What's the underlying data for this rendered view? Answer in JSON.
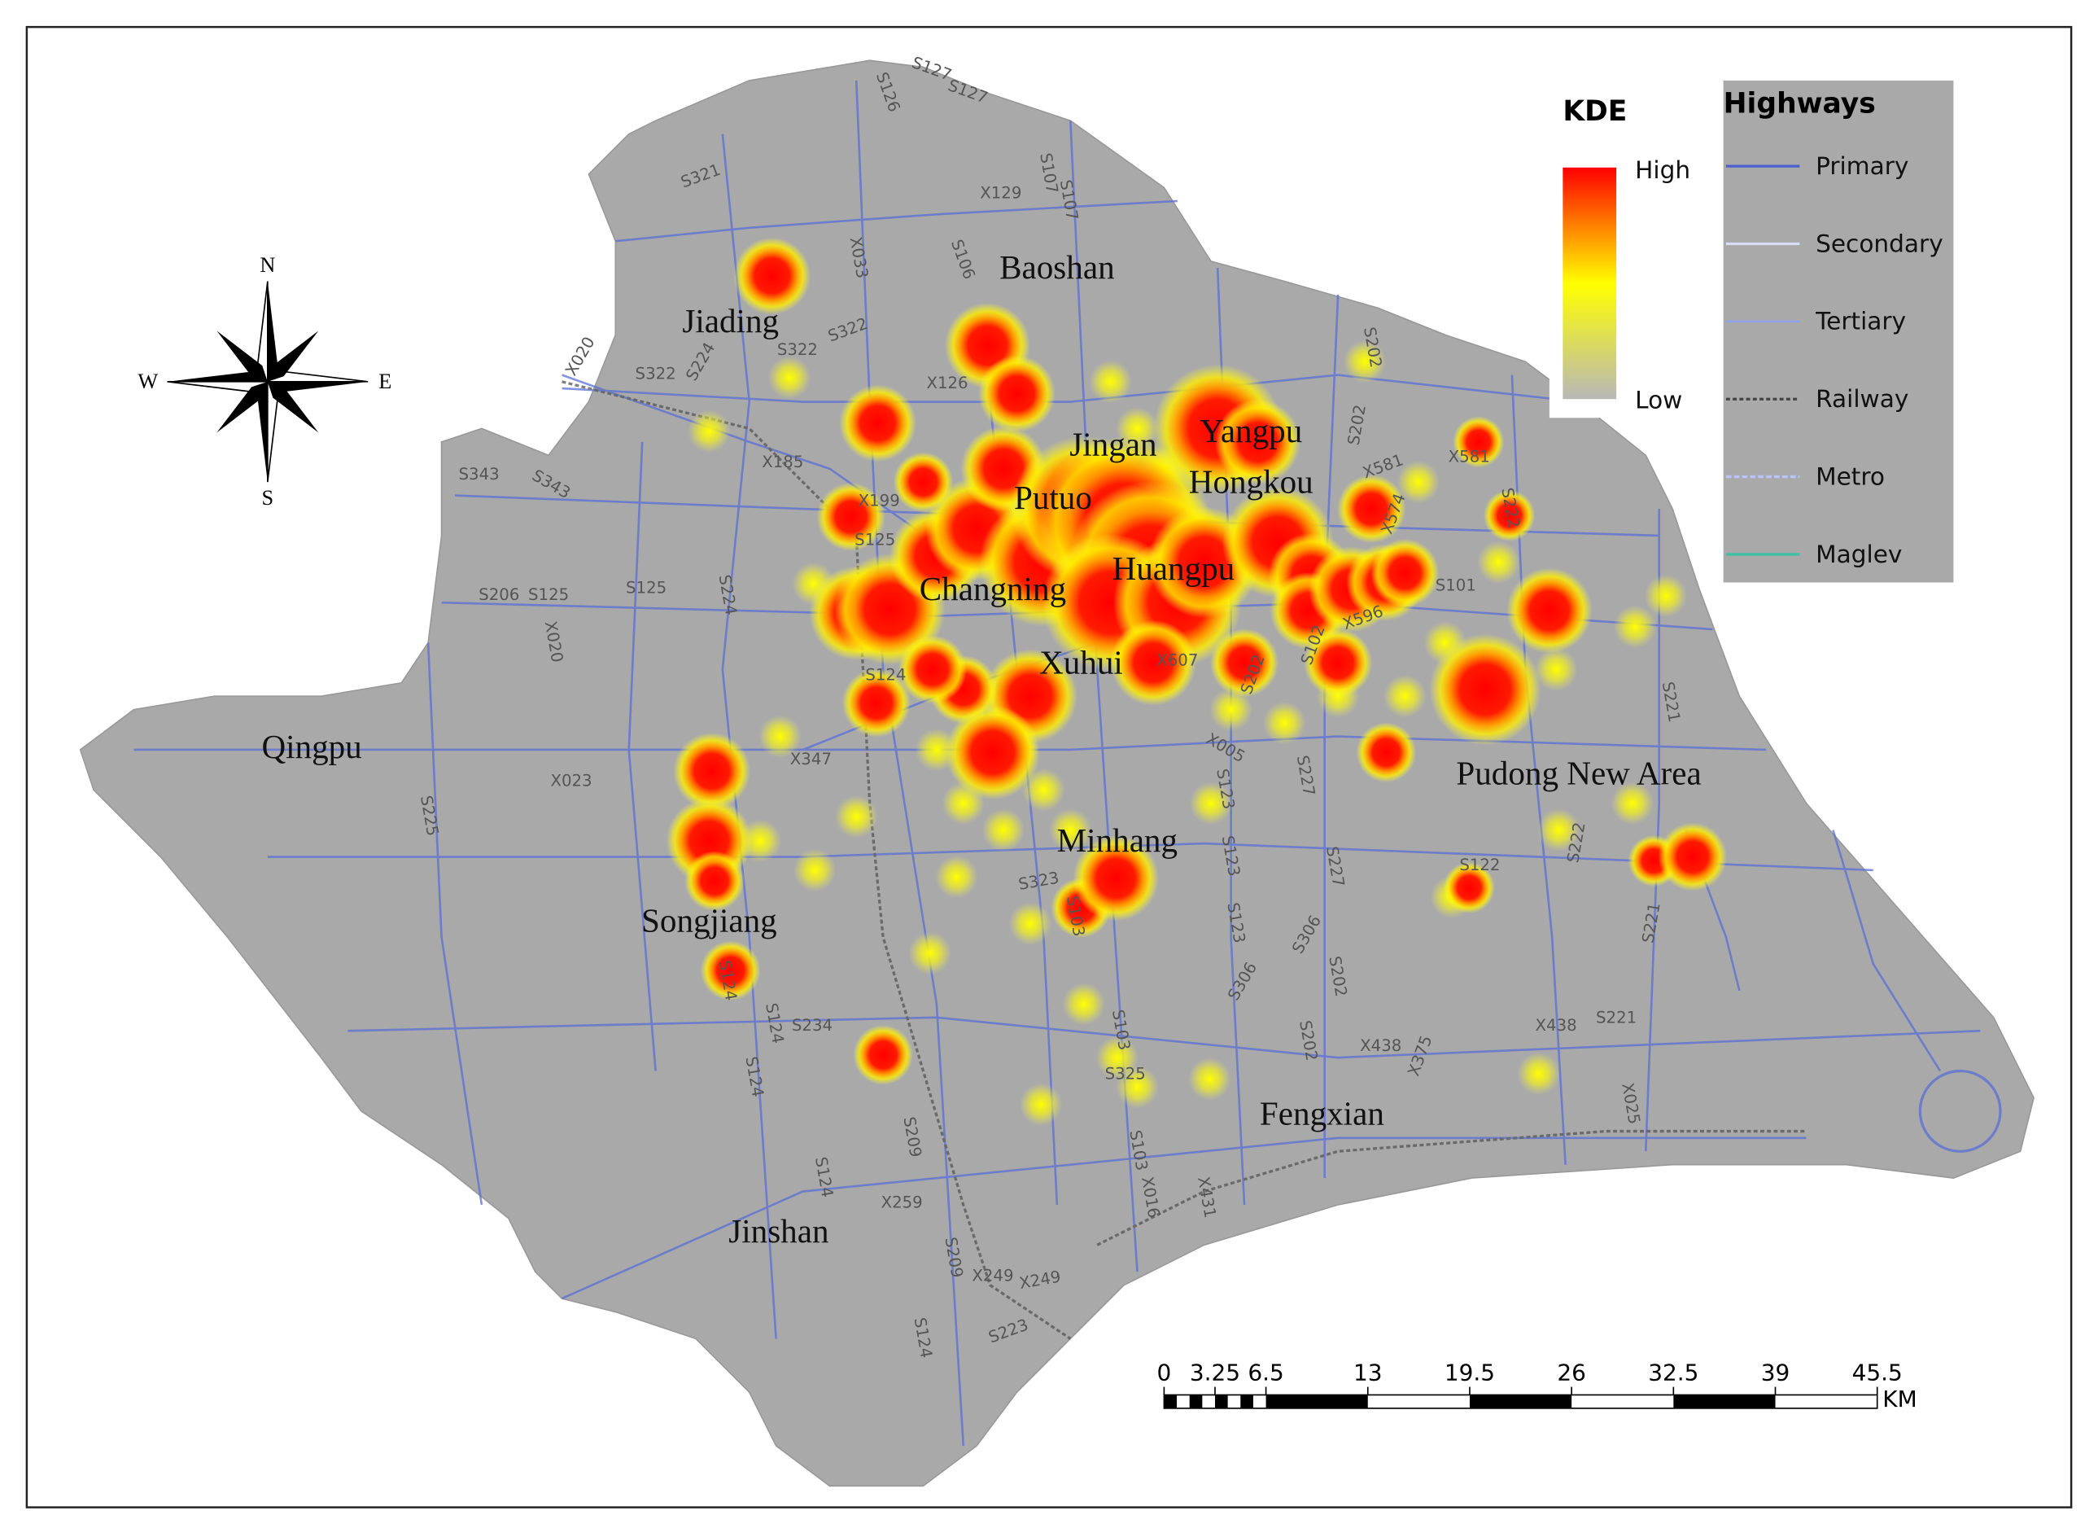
{
  "map": {
    "districts": [
      "Baoshan",
      "Jiading",
      "Jingan",
      "Yangpu",
      "Putuo",
      "Hongkou",
      "Changning",
      "Huangpu",
      "Xuhui",
      "Qingpu",
      "Pudong New Area",
      "Minhang",
      "Songjiang",
      "Fengxian",
      "Jinshan"
    ],
    "roads": [
      "S127",
      "S127",
      "S126",
      "S321",
      "X129",
      "S107",
      "S107",
      "X033",
      "S106",
      "S322",
      "S322",
      "S322",
      "X020",
      "S224",
      "X126",
      "S343",
      "S343",
      "X185",
      "X199",
      "S125",
      "S224",
      "S125",
      "S206",
      "S125",
      "X020",
      "S124",
      "X347",
      "X023",
      "S225",
      "S323",
      "S103",
      "S124",
      "S124",
      "S234",
      "S124",
      "S124",
      "S209",
      "X259",
      "S209",
      "X249",
      "X249",
      "S223",
      "S124",
      "S103",
      "S325",
      "S103",
      "X016",
      "X431",
      "X005",
      "S123",
      "S123",
      "S123",
      "S306",
      "S306",
      "S202",
      "S227",
      "S227",
      "S202",
      "X438",
      "X375",
      "X438",
      "S221",
      "X025",
      "S221",
      "S122",
      "S222",
      "S221",
      "X607",
      "S202",
      "S102",
      "X596",
      "S101",
      "S202",
      "S202",
      "X581",
      "X581",
      "S222",
      "X574"
    ]
  },
  "compass": {
    "n": "N",
    "s": "S",
    "e": "E",
    "w": "W"
  },
  "kde_legend": {
    "title": "KDE",
    "high": "High",
    "low": "Low"
  },
  "highways_legend": {
    "title": "Highways",
    "items": [
      "Primary",
      "Secondary",
      "Tertiary",
      "Railway",
      "Metro",
      "Maglev"
    ]
  },
  "scale_bar": {
    "ticks": [
      0,
      3.25,
      6.5,
      13,
      19.5,
      26,
      32.5,
      39,
      45.5
    ],
    "unit": "KM"
  }
}
